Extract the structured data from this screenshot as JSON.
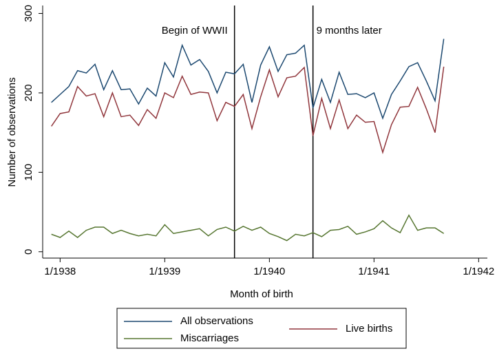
{
  "chart_data": {
    "type": "line",
    "x_label": "Month of birth",
    "y_label": "Number of observations",
    "x": [
      "12/1937",
      "1/1938",
      "2/1938",
      "3/1938",
      "4/1938",
      "5/1938",
      "6/1938",
      "7/1938",
      "8/1938",
      "9/1938",
      "10/1938",
      "11/1938",
      "12/1938",
      "1/1939",
      "2/1939",
      "3/1939",
      "4/1939",
      "5/1939",
      "6/1939",
      "7/1939",
      "8/1939",
      "9/1939",
      "10/1939",
      "11/1939",
      "12/1939",
      "1/1940",
      "2/1940",
      "3/1940",
      "4/1940",
      "5/1940",
      "6/1940",
      "7/1940",
      "8/1940",
      "9/1940",
      "10/1940",
      "11/1940",
      "12/1940",
      "1/1941",
      "2/1941",
      "3/1941",
      "4/1941",
      "5/1941",
      "6/1941",
      "7/1941",
      "8/1941",
      "9/1941"
    ],
    "series": [
      {
        "name": "All observations",
        "color": "#1a476f",
        "values": [
          188,
          198,
          208,
          228,
          225,
          236,
          204,
          228,
          204,
          205,
          186,
          206,
          196,
          238,
          220,
          260,
          235,
          242,
          227,
          200,
          226,
          224,
          236,
          188,
          235,
          258,
          227,
          248,
          250,
          260,
          181,
          217,
          188,
          226,
          198,
          199,
          194,
          200,
          168,
          198,
          215,
          233,
          238,
          215,
          190,
          268
        ]
      },
      {
        "name": "Live births",
        "color": "#90353b",
        "values": [
          158,
          174,
          176,
          208,
          196,
          199,
          170,
          200,
          170,
          172,
          159,
          179,
          168,
          200,
          194,
          221,
          198,
          201,
          200,
          165,
          188,
          183,
          198,
          155,
          195,
          229,
          195,
          219,
          221,
          232,
          146,
          193,
          155,
          191,
          155,
          172,
          163,
          164,
          125,
          160,
          182,
          183,
          207,
          180,
          150,
          233
        ]
      },
      {
        "name": "Miscarriages",
        "color": "#55752f",
        "values": [
          22,
          18,
          26,
          18,
          27,
          31,
          31,
          23,
          27,
          23,
          20,
          22,
          20,
          34,
          23,
          25,
          27,
          29,
          20,
          28,
          31,
          26,
          32,
          27,
          31,
          23,
          19,
          14,
          22,
          20,
          24,
          19,
          27,
          28,
          32,
          22,
          25,
          29,
          39,
          30,
          24,
          46,
          27,
          30,
          30,
          23
        ]
      }
    ],
    "xlim": [
      "11/1937",
      "2/1942"
    ],
    "xticks": [
      "1/1938",
      "1/1939",
      "1/1940",
      "1/1941",
      "1/1942"
    ],
    "ylim": [
      -8,
      310
    ],
    "yticks": [
      0,
      100,
      200,
      300
    ],
    "annotations": [
      {
        "x": "9/1939",
        "text": "Begin of WWII"
      },
      {
        "x": "6/1940",
        "text": "9 months later"
      }
    ]
  }
}
